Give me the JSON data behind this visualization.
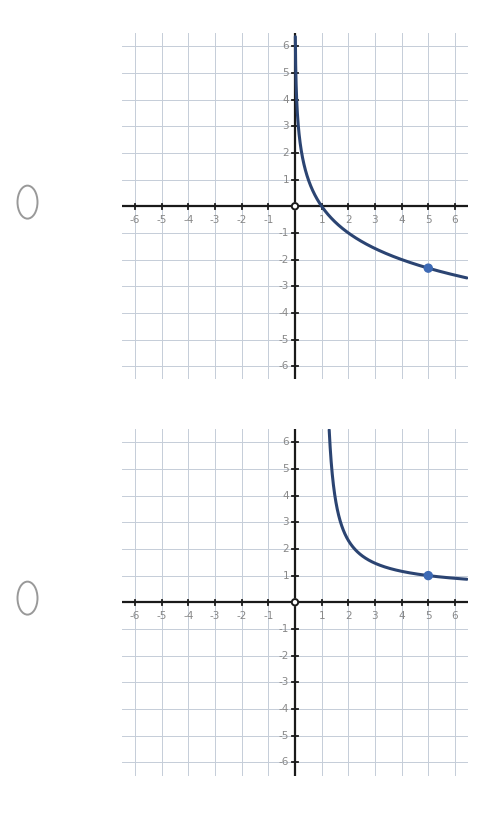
{
  "graphs": [
    {
      "func": "neg_log2",
      "dot_x": 5,
      "dot_y": -2.3219,
      "curve_color": "#2b4472",
      "dot_color": "#3d6ab5",
      "x_start": 0.01,
      "x_end": 6.45,
      "x_only_positive": false
    },
    {
      "func": "log_x_of_5",
      "dot_x": 5,
      "dot_y": 1.0,
      "curve_color": "#2b4472",
      "dot_color": "#3d6ab5",
      "x_start": 1.001,
      "x_end": 6.45,
      "x_only_positive": true
    }
  ],
  "xlim": [
    -6.5,
    6.5
  ],
  "ylim": [
    -6.5,
    6.5
  ],
  "ticks": [
    -6,
    -5,
    -4,
    -3,
    -2,
    -1,
    1,
    2,
    3,
    4,
    5,
    6
  ],
  "grid_color": "#c5cdd8",
  "axis_color": "#1a1a1a",
  "tick_label_color": "#888888",
  "tick_label_fontsize": 7.5,
  "background_color": "#ffffff",
  "radio_color": "#999999",
  "origin_circle_r": 0.12,
  "dot_r": 0.15,
  "curve_lw": 2.2,
  "fig_width": 5.0,
  "fig_height": 8.25
}
